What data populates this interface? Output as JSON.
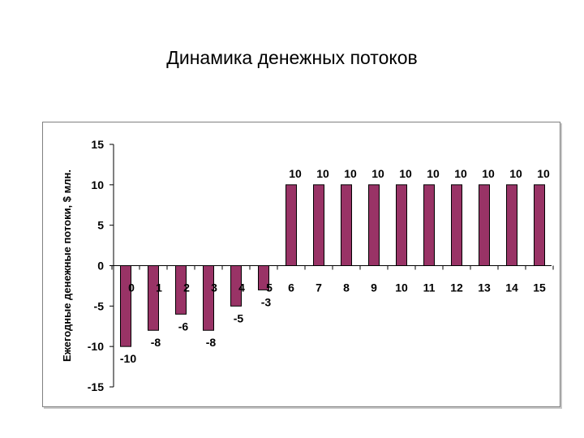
{
  "slide": {
    "title": "Динамика денежных потоков"
  },
  "chart_data": {
    "type": "bar",
    "title": "",
    "xlabel": "",
    "ylabel": "Ежегодные денежные потоки, $ млн.",
    "categories": [
      "0",
      "1",
      "2",
      "3",
      "4",
      "5",
      "6",
      "7",
      "8",
      "9",
      "10",
      "11",
      "12",
      "13",
      "14",
      "15"
    ],
    "values": [
      -10,
      -8,
      -6,
      -8,
      -5,
      -3,
      10,
      10,
      10,
      10,
      10,
      10,
      10,
      10,
      10,
      10
    ],
    "ylim": [
      -15,
      15
    ],
    "yticks": [
      15,
      10,
      5,
      0,
      -5,
      -10,
      -15
    ],
    "grid": false,
    "legend": "none",
    "bar_color": "#993366"
  }
}
